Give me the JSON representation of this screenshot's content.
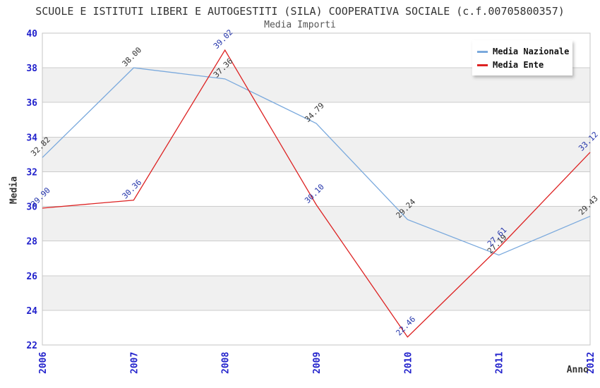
{
  "chart_data": {
    "type": "line",
    "title": "SCUOLE E ISTITUTI LIBERI E AUTOGESTITI (SILA) COOPERATIVA SOCIALE (c.f.00705800357)",
    "subtitle": "Media Importi",
    "xlabel": "Anno",
    "ylabel": "Media",
    "x": [
      2006,
      2007,
      2008,
      2009,
      2010,
      2011,
      2012
    ],
    "ylim": [
      22,
      40
    ],
    "ytick_step": 2,
    "grid": "horizontal",
    "legend_position": "top-right",
    "series": [
      {
        "name": "Media Nazionale",
        "color": "#7aa9dd",
        "label_color": "#333333",
        "values": [
          32.82,
          38.0,
          37.36,
          34.79,
          29.24,
          27.19,
          29.43
        ]
      },
      {
        "name": "Media Ente",
        "color": "#dd2222",
        "label_color": "#2233aa",
        "values": [
          29.9,
          30.36,
          39.02,
          30.1,
          22.46,
          27.61,
          33.12
        ]
      }
    ],
    "colors": {
      "tick_label": "#2222cc",
      "axis_title": "#333333",
      "band_alt": "#f0f0f0",
      "grid_line": "#cccccc",
      "plot_border": "#c4c4c4"
    }
  }
}
